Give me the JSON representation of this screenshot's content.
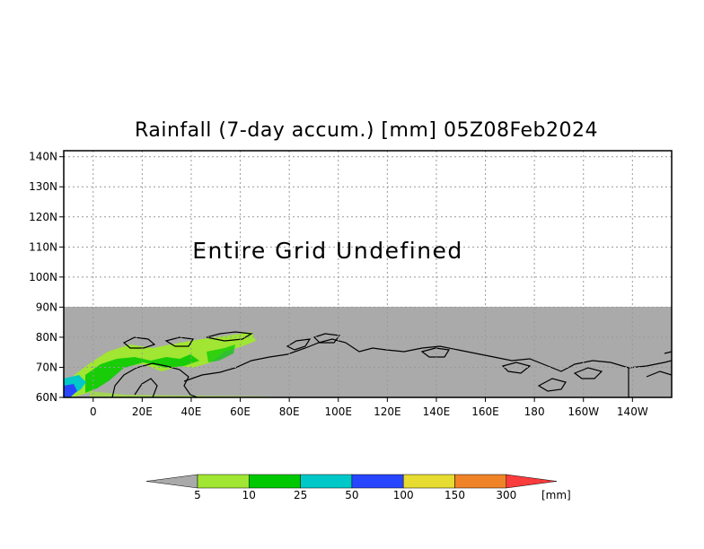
{
  "title": "Rainfall (7-day accum.) [mm] 05Z08Feb2024",
  "map": {
    "message": "Entire Grid Undefined",
    "lat_ticks": [
      "140N",
      "130N",
      "120N",
      "110N",
      "100N",
      "90N",
      "80N",
      "70N",
      "60N"
    ],
    "lon_ticks": [
      "0",
      "20E",
      "40E",
      "60E",
      "80E",
      "100E",
      "120E",
      "140E",
      "160E",
      "180",
      "160W",
      "140W"
    ],
    "lat_range": [
      60,
      142
    ],
    "lon_range": [
      -12,
      236
    ],
    "undefined_above_lat": 90,
    "colors": {
      "undefined": "#aaaaaa",
      "frame": "#000000",
      "grid": "#999999"
    }
  },
  "colorbar": {
    "levels": [
      "5",
      "10",
      "25",
      "50",
      "100",
      "150",
      "300"
    ],
    "unit": "[mm]",
    "colors": [
      "#aaaaaa",
      "#a0e632",
      "#00c800",
      "#00c8c8",
      "#2846ff",
      "#e6dc32",
      "#f08228",
      "#fa3c3c"
    ]
  }
}
